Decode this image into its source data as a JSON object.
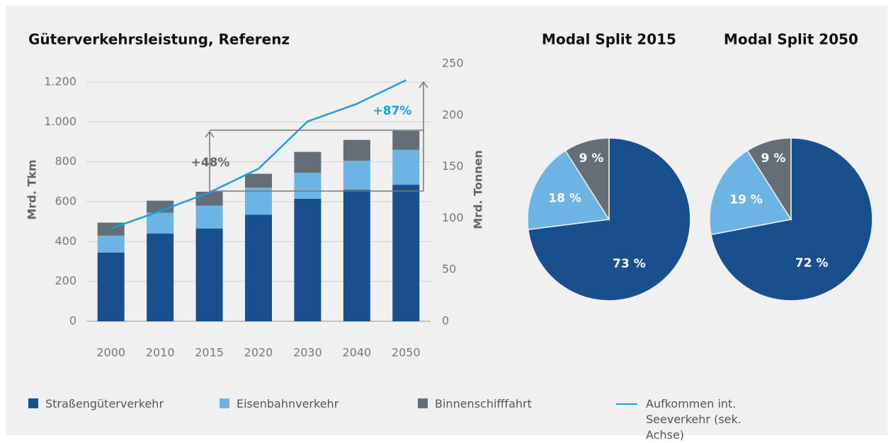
{
  "chart_data": [
    {
      "type": "bar",
      "title": "Güterverkehrsleistung, Referenz",
      "categories": [
        "2000",
        "2010",
        "2015",
        "2020",
        "2030",
        "2040",
        "2050"
      ],
      "stacked": true,
      "series": [
        {
          "name": "Straßengüterverkehr",
          "color": "#1a4f8e",
          "values": [
            345,
            440,
            465,
            535,
            615,
            660,
            685
          ]
        },
        {
          "name": "Eisenbahnverkehr",
          "color": "#6cb4e4",
          "values": [
            85,
            105,
            115,
            135,
            130,
            145,
            175
          ]
        },
        {
          "name": "Binnenschifffahrt",
          "color": "#656d76",
          "values": [
            65,
            60,
            70,
            70,
            105,
            105,
            95
          ]
        },
        {
          "name": "Aufkommen int. Seeverkehr (sek. Achse)",
          "color": "#1aa0dc",
          "type": "line",
          "axis": "y2",
          "values": [
            90,
            107,
            125,
            148,
            194,
            211,
            234
          ]
        }
      ],
      "ylabel": "Mrd. Tkm",
      "y2label": "Mrd. Tonnen",
      "ylim": [
        0,
        1200
      ],
      "yticks": [
        0,
        200,
        400,
        600,
        800,
        {
          "value": 1000,
          "label": "1.000"
        },
        {
          "value": 1200,
          "label": "1.200"
        }
      ],
      "y2lim": [
        0,
        250
      ],
      "y2ticks": [
        0,
        50,
        100,
        150,
        200,
        250
      ],
      "grid": true,
      "annotations": [
        "+48%",
        "+87%"
      ]
    },
    {
      "type": "pie",
      "title": "Modal Split 2015",
      "categories": [
        "Straßengüterverkehr",
        "Eisenbahnverkehr",
        "Binnenschifffahrt"
      ],
      "colors": [
        "#1a4f8e",
        "#6cb4e4",
        "#656d76"
      ],
      "values": [
        73,
        18,
        9
      ],
      "value_labels": [
        "73 %",
        "18 %",
        "9 %"
      ]
    },
    {
      "type": "pie",
      "title": "Modal Split 2050",
      "categories": [
        "Straßengüterverkehr",
        "Eisenbahnverkehr",
        "Binnenschifffahrt"
      ],
      "colors": [
        "#1a4f8e",
        "#6cb4e4",
        "#656d76"
      ],
      "values": [
        72,
        19,
        9
      ],
      "value_labels": [
        "72 %",
        "19 %",
        "9 %"
      ]
    }
  ]
}
